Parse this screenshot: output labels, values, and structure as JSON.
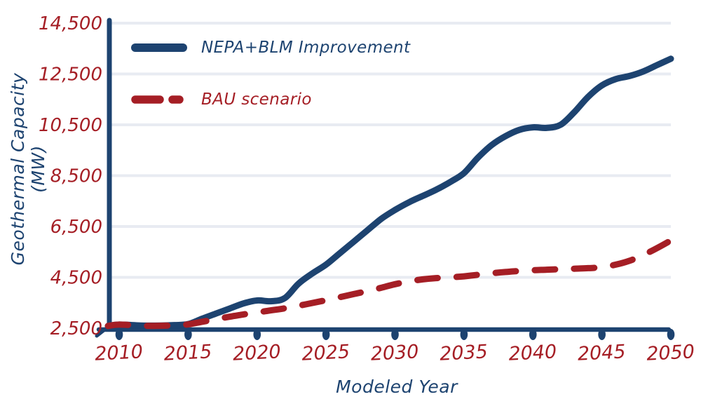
{
  "chart_data": {
    "type": "line",
    "title": "",
    "xlabel": "Modeled Year",
    "ylabel": "Geothermal Capacity (MW)",
    "xlim": [
      2010,
      2050
    ],
    "ylim": [
      2500,
      14500
    ],
    "x_tick_values": [
      2010,
      2015,
      2020,
      2025,
      2030,
      2035,
      2040,
      2045,
      2050
    ],
    "x_tick_labels": [
      "2010",
      "2015",
      "2020",
      "2025",
      "2030",
      "2035",
      "2040",
      "2045",
      "2050"
    ],
    "y_tick_values": [
      14500,
      12500,
      10500,
      8500,
      6500,
      4500,
      2500
    ],
    "y_tick_labels": [
      "14,500",
      "12,500",
      "10,500",
      "8,500",
      "6,500",
      "4,500",
      "2,500"
    ],
    "grid": "horizontal-only",
    "legend_position": "upper-left",
    "style": "hand-drawn",
    "colors": {
      "axis": "#1d4370",
      "tick_labels": "#a51e25",
      "gridline": "#e8ebf2",
      "background": "#ffffff",
      "series_blue": "#1d4370",
      "series_red": "#a51e25"
    },
    "series": [
      {
        "name": "NEPA+BLM Improvement",
        "color": "#1d4370",
        "line_style": "solid",
        "x": [
          2010,
          2012,
          2014,
          2015,
          2016,
          2017,
          2018,
          2019,
          2020,
          2021,
          2022,
          2023,
          2024,
          2025,
          2026,
          2027,
          2028,
          2029,
          2030,
          2031,
          2032,
          2033,
          2034,
          2035,
          2036,
          2037,
          2038,
          2039,
          2040,
          2041,
          2042,
          2043,
          2044,
          2045,
          2046,
          2047,
          2048,
          2049,
          2050
        ],
        "y": [
          2640,
          2600,
          2620,
          2660,
          2870,
          3070,
          3270,
          3470,
          3590,
          3560,
          3680,
          4250,
          4650,
          5000,
          5450,
          5900,
          6350,
          6800,
          7150,
          7450,
          7700,
          7950,
          8250,
          8600,
          9200,
          9700,
          10050,
          10300,
          10400,
          10380,
          10500,
          11000,
          11600,
          12050,
          12300,
          12420,
          12600,
          12850,
          13100
        ]
      },
      {
        "name": "BAU scenario",
        "color": "#a51e25",
        "line_style": "dashed",
        "x": [
          2010,
          2012,
          2014,
          2015,
          2016,
          2017,
          2018,
          2019,
          2020,
          2021,
          2022,
          2023,
          2024,
          2025,
          2026,
          2027,
          2028,
          2029,
          2030,
          2031,
          2032,
          2033,
          2034,
          2035,
          2036,
          2037,
          2038,
          2039,
          2040,
          2041,
          2042,
          2043,
          2044,
          2045,
          2046,
          2047,
          2048,
          2049,
          2050
        ],
        "y": [
          2640,
          2590,
          2610,
          2650,
          2750,
          2850,
          2950,
          3040,
          3120,
          3200,
          3280,
          3380,
          3490,
          3600,
          3720,
          3840,
          3960,
          4090,
          4230,
          4340,
          4420,
          4470,
          4500,
          4540,
          4600,
          4660,
          4710,
          4750,
          4780,
          4800,
          4820,
          4840,
          4860,
          4900,
          5000,
          5150,
          5380,
          5650,
          5950
        ]
      }
    ]
  }
}
